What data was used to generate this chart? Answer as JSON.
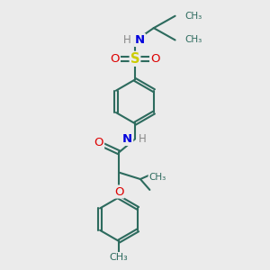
{
  "background_color": "#ebebeb",
  "bond_color": "#2d6b5e",
  "bond_width": 1.5,
  "dbo": 0.055,
  "S_color": "#cccc00",
  "O_color": "#dd0000",
  "N_color": "#0000dd",
  "C_color": "#2d6b5e",
  "H_color": "#888888",
  "figsize": [
    3.0,
    3.0
  ],
  "dpi": 100,
  "xlim": [
    0,
    10
  ],
  "ylim": [
    0,
    10
  ]
}
